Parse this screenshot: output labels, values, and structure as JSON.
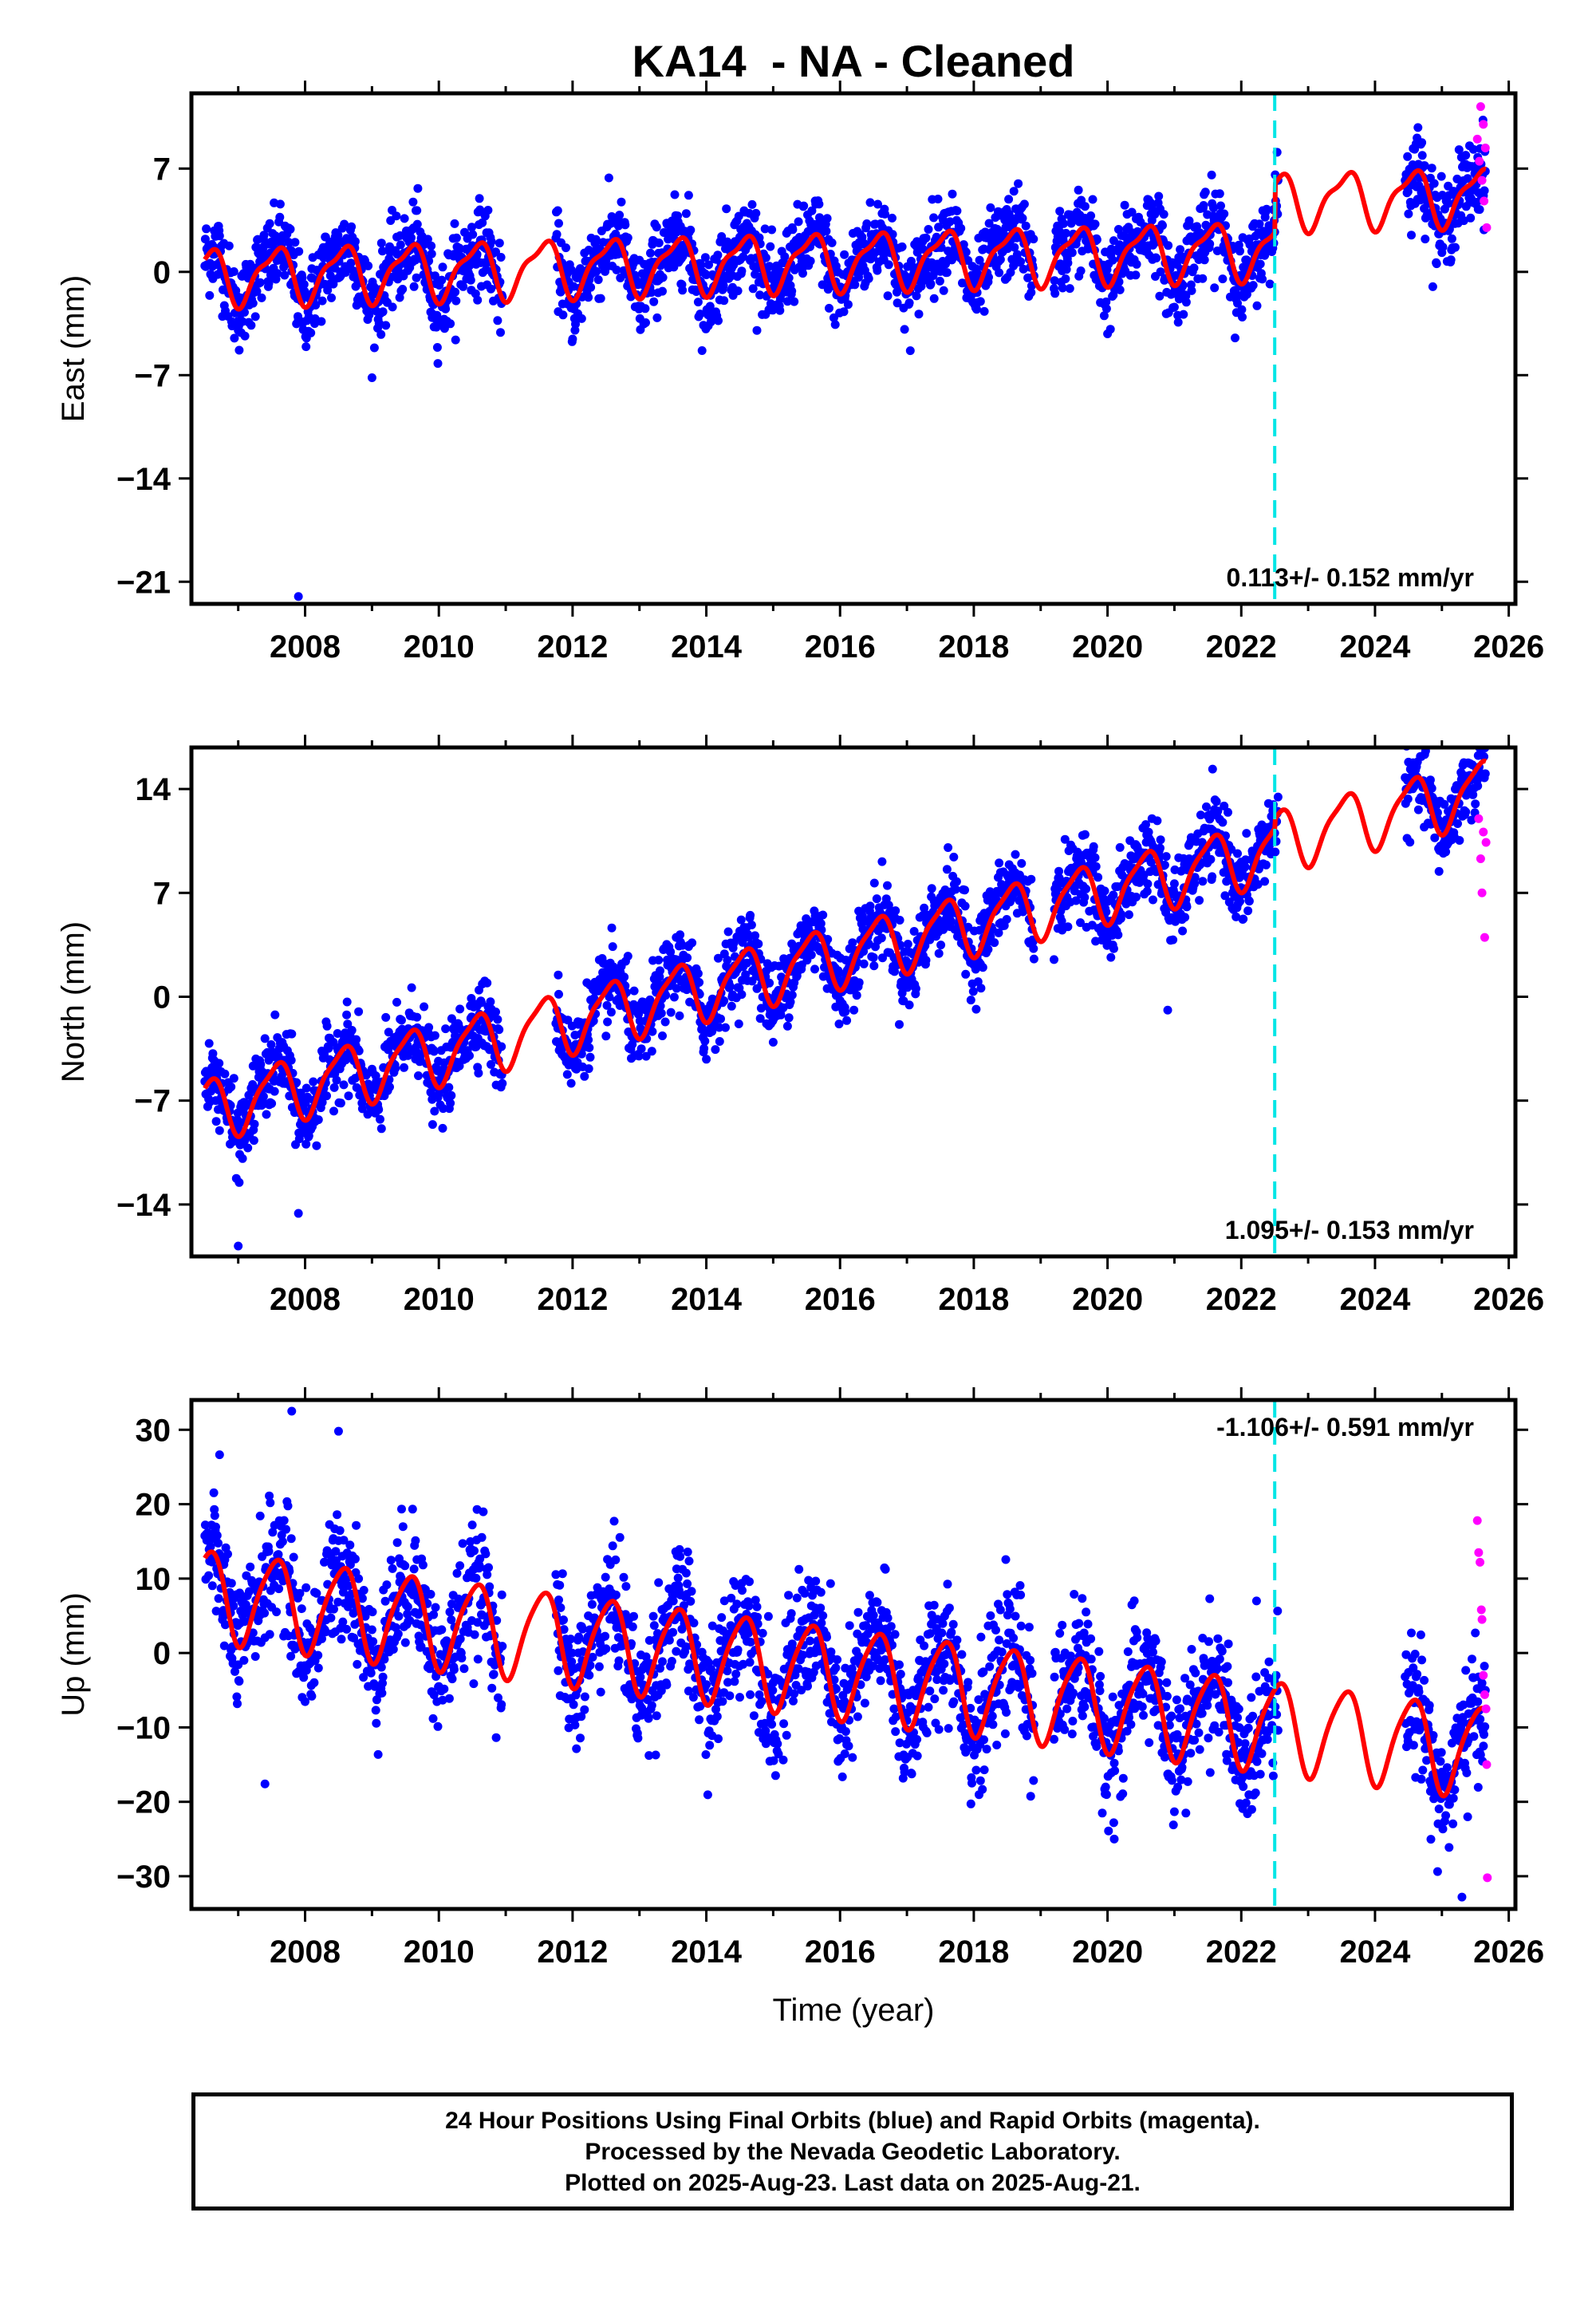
{
  "title": "KA14  - NA - Cleaned",
  "colors": {
    "final_orbits": "#0000ff",
    "rapid_orbits": "#ff00ff",
    "model": "#ff0000",
    "equipment_change": "#00e6e6"
  },
  "chart_data": [
    {
      "type": "scatter",
      "ylabel": "East (mm)",
      "xlim": [
        2006.3,
        2026.1
      ],
      "ylim": [
        -22.5,
        12.1
      ],
      "xticks": [
        2008,
        2010,
        2012,
        2014,
        2016,
        2018,
        2020,
        2022,
        2024,
        2026
      ],
      "yticks": [
        7,
        0,
        -7,
        -14,
        -21
      ],
      "rate_label": "0.113+/- 0.152 mm/yr",
      "rate_position": "bottom-right",
      "vertical_line_x": 2022.5,
      "model": {
        "offset": -0.3,
        "rate": 0.113,
        "annual_amp": 1.8,
        "semiannual_amp": 0.6,
        "late_offset": 3.3
      },
      "scatter_spread": 1.4,
      "outliers": [
        [
          2007.9,
          -22.0
        ]
      ],
      "rapid_points": [
        [
          2025.53,
          9.0
        ],
        [
          2025.56,
          7.5
        ],
        [
          2025.58,
          11.2
        ],
        [
          2025.6,
          6.2
        ],
        [
          2025.62,
          10.0
        ],
        [
          2025.63,
          4.8
        ],
        [
          2025.65,
          8.4
        ],
        [
          2025.67,
          3.0
        ]
      ],
      "series": [
        {
          "name": "Final Orbits",
          "segments": [
            [
              2006.5,
              2010.95
            ],
            [
              2011.75,
              2018.9
            ],
            [
              2019.2,
              2022.55
            ],
            [
              2024.45,
              2025.65
            ]
          ]
        },
        {
          "name": "Rapid Orbits",
          "segments": [
            [
              2025.53,
              2025.68
            ]
          ]
        }
      ]
    },
    {
      "type": "scatter",
      "ylabel": "North (mm)",
      "xlim": [
        2006.3,
        2026.1
      ],
      "ylim": [
        -17.5,
        16.8
      ],
      "xticks": [
        2008,
        2010,
        2012,
        2014,
        2016,
        2018,
        2020,
        2022,
        2024,
        2026
      ],
      "yticks": [
        14,
        7,
        0,
        -7,
        -14
      ],
      "rate_label": "1.095+/- 0.153 mm/yr",
      "rate_position": "bottom-right",
      "vertical_line_x": 2022.5,
      "model": {
        "offset": -7.6,
        "rate": 1.095,
        "annual_amp": 2.0,
        "semiannual_amp": 0.5,
        "late_offset": 0.6
      },
      "scatter_spread": 1.3,
      "outliers": [
        [
          2007.0,
          -16.8
        ],
        [
          2007.9,
          -14.6
        ],
        [
          2020.9,
          -0.9
        ]
      ],
      "rapid_points": [
        [
          2025.55,
          12.0
        ],
        [
          2025.58,
          9.3
        ],
        [
          2025.6,
          7.0
        ],
        [
          2025.62,
          11.1
        ],
        [
          2025.64,
          4.0
        ],
        [
          2025.66,
          10.4
        ]
      ],
      "series": [
        {
          "name": "Final Orbits",
          "segments": [
            [
              2006.5,
              2010.95
            ],
            [
              2011.75,
              2018.9
            ],
            [
              2019.2,
              2022.55
            ],
            [
              2024.45,
              2025.65
            ]
          ]
        },
        {
          "name": "Rapid Orbits",
          "segments": [
            [
              2025.53,
              2025.68
            ]
          ]
        }
      ]
    },
    {
      "type": "scatter",
      "ylabel": "Up (mm)",
      "xlabel": "Time (year)",
      "xlim": [
        2006.3,
        2026.1
      ],
      "ylim": [
        -34.4,
        34.0
      ],
      "xticks": [
        2008,
        2010,
        2012,
        2014,
        2016,
        2018,
        2020,
        2022,
        2024,
        2026
      ],
      "yticks": [
        30,
        20,
        10,
        0,
        -10,
        -20,
        -30
      ],
      "rate_label": "-1.106+/- 0.591 mm/yr",
      "rate_position": "top-right",
      "vertical_line_x": 2022.5,
      "model": {
        "offset": 8.0,
        "rate": -1.106,
        "annual_amp": 6.0,
        "semiannual_amp": 1.0,
        "late_offset": 0.0
      },
      "scatter_spread": 4.2,
      "outliers": [
        [
          2007.8,
          32.5
        ],
        [
          2008.5,
          29.8
        ],
        [
          2007.4,
          -17.6
        ],
        [
          2020.1,
          -25.0
        ],
        [
          2025.3,
          -32.8
        ]
      ],
      "rapid_points": [
        [
          2025.53,
          17.8
        ],
        [
          2025.55,
          13.5
        ],
        [
          2025.57,
          12.2
        ],
        [
          2025.59,
          5.8
        ],
        [
          2025.6,
          4.5
        ],
        [
          2025.62,
          -3.0
        ],
        [
          2025.64,
          -5.6
        ],
        [
          2025.66,
          -7.5
        ],
        [
          2025.67,
          -15.0
        ],
        [
          2025.68,
          -30.2
        ]
      ],
      "series": [
        {
          "name": "Final Orbits",
          "segments": [
            [
              2006.5,
              2010.95
            ],
            [
              2011.75,
              2018.9
            ],
            [
              2019.2,
              2022.55
            ],
            [
              2024.45,
              2025.65
            ]
          ]
        },
        {
          "name": "Rapid Orbits",
          "segments": [
            [
              2025.53,
              2025.68
            ]
          ]
        }
      ]
    }
  ],
  "footer": {
    "line1": "24 Hour Positions Using Final Orbits (blue) and Rapid Orbits (magenta).",
    "line2": "Processed by the Nevada Geodetic Laboratory.",
    "line3": "Plotted on 2025-Aug-23. Last data on 2025-Aug-21."
  }
}
